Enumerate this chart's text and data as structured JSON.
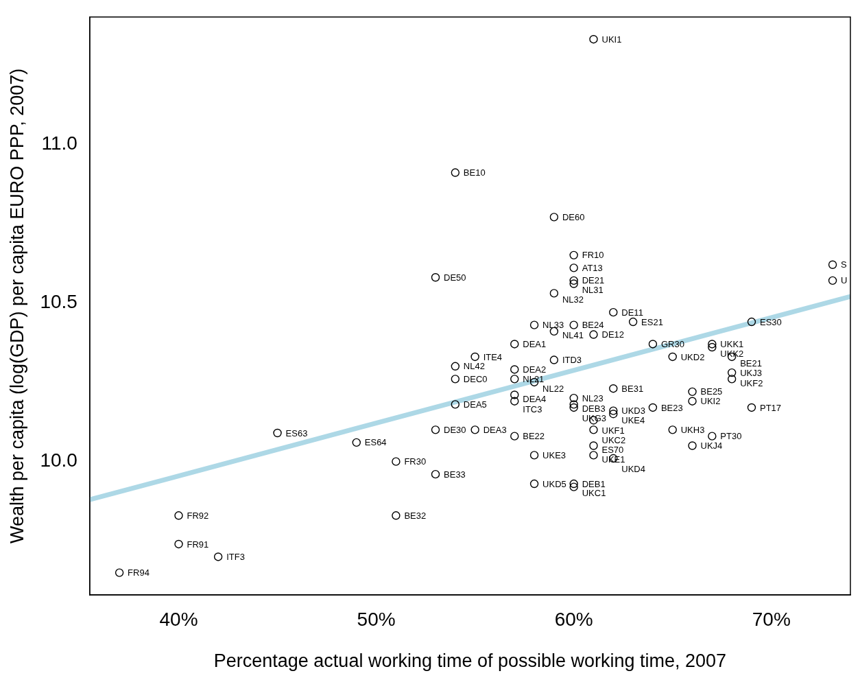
{
  "chart_data": {
    "type": "scatter",
    "xlabel": "Percentage actual working time of possible working time, 2007",
    "ylabel": "Wealth per capita (log(GDP) per capita EURO PPP, 2007)",
    "xlim": [
      35.5,
      74
    ],
    "ylim": [
      9.58,
      11.4
    ],
    "xticks": [
      {
        "value": 40,
        "label": "40%"
      },
      {
        "value": 50,
        "label": "50%"
      },
      {
        "value": 60,
        "label": "60%"
      },
      {
        "value": 70,
        "label": "70%"
      }
    ],
    "yticks": [
      {
        "value": 10,
        "label": "10.0"
      },
      {
        "value": 10.5,
        "label": "10.5"
      },
      {
        "value": 11,
        "label": "11.0"
      }
    ],
    "grid": false,
    "legend": false,
    "series": [
      {
        "marker": "circle",
        "color": "#000000",
        "x": [
          61,
          54,
          59,
          60,
          60,
          60,
          60,
          59,
          53,
          58,
          59,
          60,
          61,
          62,
          63,
          69,
          64,
          67,
          67,
          65,
          68,
          68,
          68,
          62,
          66,
          66,
          69,
          64,
          65,
          67,
          66,
          60,
          60,
          60,
          62,
          62,
          61,
          61,
          61,
          61,
          62,
          58,
          58,
          60,
          60,
          53,
          55,
          57,
          51,
          53,
          54,
          57,
          58,
          57,
          57,
          54,
          57,
          57,
          55,
          54,
          59,
          45,
          49,
          40,
          40,
          42,
          37,
          51,
          73.1,
          73.1
        ],
        "values": [
          11.33,
          10.91,
          10.77,
          10.65,
          10.61,
          10.57,
          10.56,
          10.53,
          10.58,
          10.43,
          10.41,
          10.43,
          10.4,
          10.47,
          10.44,
          10.44,
          10.37,
          10.37,
          10.36,
          10.33,
          10.33,
          10.28,
          10.26,
          10.23,
          10.22,
          10.19,
          10.17,
          10.17,
          10.1,
          10.08,
          10.05,
          10.2,
          10.18,
          10.17,
          10.16,
          10.15,
          10.13,
          10.1,
          10.05,
          10.02,
          10.01,
          10.02,
          9.93,
          9.93,
          9.92,
          10.1,
          10.1,
          10.08,
          10,
          9.96,
          10.26,
          10.26,
          10.25,
          10.21,
          10.19,
          10.18,
          10.29,
          10.37,
          10.33,
          10.3,
          10.32,
          10.09,
          10.06,
          9.83,
          9.74,
          9.7,
          9.65,
          9.83,
          10.62,
          10.57
        ]
      },
      {
        "type": "line",
        "color": "#add8e6",
        "x": [
          35.5,
          74
        ],
        "values": [
          9.88,
          10.52
        ]
      }
    ],
    "annotations": [
      {
        "text": "UKI1",
        "x": 61,
        "y": 11.33
      },
      {
        "text": "BE10",
        "x": 54,
        "y": 10.91
      },
      {
        "text": "DE60",
        "x": 59,
        "y": 10.77
      },
      {
        "text": "FR10",
        "x": 60,
        "y": 10.65
      },
      {
        "text": "AT13",
        "x": 60,
        "y": 10.61
      },
      {
        "text": "DE21",
        "x": 60,
        "y": 10.57
      },
      {
        "text": "NL31",
        "x": 60,
        "y": 10.56
      },
      {
        "text": "NL32",
        "x": 59,
        "y": 10.53
      },
      {
        "text": "DE50",
        "x": 53,
        "y": 10.58
      },
      {
        "text": "NL33",
        "x": 58,
        "y": 10.43
      },
      {
        "text": "NL41",
        "x": 59,
        "y": 10.41
      },
      {
        "text": "BE24",
        "x": 60,
        "y": 10.43
      },
      {
        "text": "DE12",
        "x": 61,
        "y": 10.4
      },
      {
        "text": "DE11",
        "x": 62,
        "y": 10.47
      },
      {
        "text": "ES21",
        "x": 63,
        "y": 10.44
      },
      {
        "text": "ES30",
        "x": 69,
        "y": 10.44
      },
      {
        "text": "GR30",
        "x": 64,
        "y": 10.37
      },
      {
        "text": "UKK1",
        "x": 67,
        "y": 10.37
      },
      {
        "text": "UKK2",
        "x": 67,
        "y": 10.36
      },
      {
        "text": "UKD2",
        "x": 65,
        "y": 10.33
      },
      {
        "text": "BE21",
        "x": 68,
        "y": 10.33
      },
      {
        "text": "UKJ3",
        "x": 68,
        "y": 10.28
      },
      {
        "text": "UKF2",
        "x": 68,
        "y": 10.26
      },
      {
        "text": "BE31",
        "x": 62,
        "y": 10.23
      },
      {
        "text": "BE25",
        "x": 66,
        "y": 10.22
      },
      {
        "text": "UKI2",
        "x": 66,
        "y": 10.19
      },
      {
        "text": "PT17",
        "x": 69,
        "y": 10.17
      },
      {
        "text": "BE23",
        "x": 64,
        "y": 10.17
      },
      {
        "text": "UKH3",
        "x": 65,
        "y": 10.1
      },
      {
        "text": "PT30",
        "x": 67,
        "y": 10.08
      },
      {
        "text": "UKJ4",
        "x": 66,
        "y": 10.05
      },
      {
        "text": "NL23",
        "x": 60,
        "y": 10.2
      },
      {
        "text": "DEB3",
        "x": 60,
        "y": 10.18
      },
      {
        "text": "UKG3",
        "x": 60,
        "y": 10.17
      },
      {
        "text": "UKD3",
        "x": 62,
        "y": 10.16
      },
      {
        "text": "UKE4",
        "x": 62,
        "y": 10.15
      },
      {
        "text": "UKF1",
        "x": 61,
        "y": 10.13
      },
      {
        "text": "UKC2",
        "x": 61,
        "y": 10.1
      },
      {
        "text": "ES70",
        "x": 61,
        "y": 10.05
      },
      {
        "text": "UKE1",
        "x": 61,
        "y": 10.02
      },
      {
        "text": "UKD4",
        "x": 62,
        "y": 10.01
      },
      {
        "text": "UKE3",
        "x": 58,
        "y": 10.02
      },
      {
        "text": "UKD5",
        "x": 58,
        "y": 9.93
      },
      {
        "text": "DEB1",
        "x": 60,
        "y": 9.93
      },
      {
        "text": "UKC1",
        "x": 60,
        "y": 9.92
      },
      {
        "text": "DE30",
        "x": 53,
        "y": 10.1
      },
      {
        "text": "DEA3",
        "x": 55,
        "y": 10.1
      },
      {
        "text": "BE22",
        "x": 57,
        "y": 10.08
      },
      {
        "text": "FR30",
        "x": 51,
        "y": 10
      },
      {
        "text": "BE33",
        "x": 53,
        "y": 9.96
      },
      {
        "text": "DEC0",
        "x": 54,
        "y": 10.26
      },
      {
        "text": "NL21",
        "x": 57,
        "y": 10.26
      },
      {
        "text": "NL22",
        "x": 58,
        "y": 10.25
      },
      {
        "text": "DEA4",
        "x": 57,
        "y": 10.21
      },
      {
        "text": "ITC3",
        "x": 57,
        "y": 10.19
      },
      {
        "text": "DEA5",
        "x": 54,
        "y": 10.18
      },
      {
        "text": "DEA2",
        "x": 57,
        "y": 10.29
      },
      {
        "text": "DEA1",
        "x": 57,
        "y": 10.37
      },
      {
        "text": "ITE4",
        "x": 55,
        "y": 10.33
      },
      {
        "text": "NL42",
        "x": 54,
        "y": 10.3
      },
      {
        "text": "ITD3",
        "x": 59,
        "y": 10.32
      },
      {
        "text": "ES63",
        "x": 45,
        "y": 10.09
      },
      {
        "text": "ES64",
        "x": 49,
        "y": 10.06
      },
      {
        "text": "FR92",
        "x": 40,
        "y": 9.83
      },
      {
        "text": "FR91",
        "x": 40,
        "y": 9.74
      },
      {
        "text": "ITF3",
        "x": 42,
        "y": 9.7
      },
      {
        "text": "FR94",
        "x": 37,
        "y": 9.65
      },
      {
        "text": "BE32",
        "x": 51,
        "y": 9.83
      },
      {
        "text": "S",
        "x": 73.1,
        "y": 10.62
      },
      {
        "text": "U",
        "x": 73.1,
        "y": 10.57
      }
    ]
  }
}
